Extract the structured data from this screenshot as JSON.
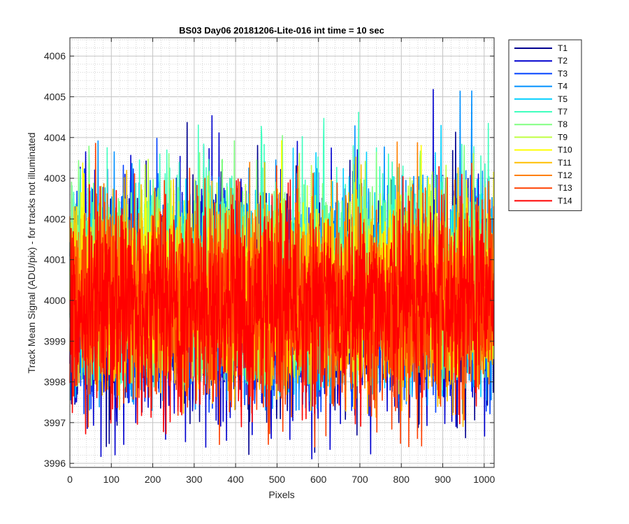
{
  "chart_data": {
    "type": "line",
    "title": "BS03 Day06 20181206-Lite-016 int time = 10 sec",
    "xlabel": "Pixels",
    "ylabel": "Track Mean Signal (ADU/pix) - for tracks not illuminated",
    "xlim": [
      0,
      1024
    ],
    "ylim": [
      3995.9,
      4006.45
    ],
    "xticks": [
      0,
      100,
      200,
      300,
      400,
      500,
      600,
      700,
      800,
      900,
      1000
    ],
    "yticks": [
      3996,
      3997,
      3998,
      3999,
      4000,
      4001,
      4002,
      4003,
      4004,
      4005,
      4006
    ],
    "grid": "major and minor",
    "legend_position": "outside top-right",
    "series": [
      {
        "name": "T1",
        "color": "#00008f",
        "mean": 3999.9,
        "low": 3996.2,
        "high": 4004.5
      },
      {
        "name": "T2",
        "color": "#0000cf",
        "mean": 3999.9,
        "low": 3996.0,
        "high": 4005.2
      },
      {
        "name": "T3",
        "color": "#0040ff",
        "mean": 4000.1,
        "low": 3997.2,
        "high": 4005.0
      },
      {
        "name": "T4",
        "color": "#0090ff",
        "mean": 4000.2,
        "low": 3997.3,
        "high": 4005.6
      },
      {
        "name": "T5",
        "color": "#00cfff",
        "mean": 4000.3,
        "low": 3997.6,
        "high": 4005.6
      },
      {
        "name": "T7",
        "color": "#40ffbf",
        "mean": 4000.5,
        "low": 3997.8,
        "high": 4006.4
      },
      {
        "name": "T8",
        "color": "#80ff80",
        "mean": 4000.4,
        "low": 3997.9,
        "high": 4005.8
      },
      {
        "name": "T9",
        "color": "#bfff40",
        "mean": 4000.3,
        "low": 3998.0,
        "high": 4004.7
      },
      {
        "name": "T10",
        "color": "#ffff00",
        "mean": 4000.1,
        "low": 3998.0,
        "high": 4005.0
      },
      {
        "name": "T11",
        "color": "#ffbf00",
        "mean": 4000.0,
        "low": 3996.9,
        "high": 4004.3
      },
      {
        "name": "T12",
        "color": "#ff8000",
        "mean": 4000.0,
        "low": 3997.8,
        "high": 4004.4
      },
      {
        "name": "T13",
        "color": "#ff4000",
        "mean": 3999.9,
        "low": 3996.4,
        "high": 4004.5
      },
      {
        "name": "T14",
        "color": "#ff0000",
        "mean": 3999.9,
        "low": 3996.7,
        "high": 4004.2
      }
    ]
  }
}
